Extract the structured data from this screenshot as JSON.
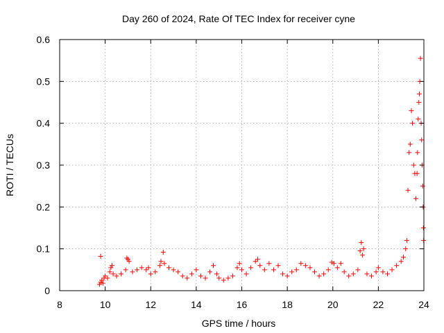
{
  "chart_data": {
    "type": "scatter",
    "title": "Day 260 of 2024, Rate Of TEC Index for receiver cyne",
    "xlabel": "GPS time / hours",
    "ylabel": "ROTI / TECUs",
    "xlim": [
      8,
      24
    ],
    "ylim": [
      0,
      0.6
    ],
    "xticks": [
      8,
      10,
      12,
      14,
      16,
      18,
      20,
      22,
      24
    ],
    "yticks": [
      0,
      0.1,
      0.2,
      0.3,
      0.4,
      0.5,
      0.6
    ],
    "xtick_labels": [
      "8",
      "10",
      "12",
      "14",
      "16",
      "18",
      "20",
      "22",
      "24"
    ],
    "ytick_labels": [
      "0",
      "0.1",
      "0.2",
      "0.3",
      "0.4",
      "0.5",
      "0.6"
    ],
    "grid": true,
    "legend": "none",
    "marker": "plus",
    "color": "#ff0000",
    "series": [
      {
        "points": [
          [
            9.8,
            0.082
          ],
          [
            9.75,
            0.015
          ],
          [
            9.8,
            0.02
          ],
          [
            9.85,
            0.025
          ],
          [
            9.9,
            0.018
          ],
          [
            9.95,
            0.03
          ],
          [
            10.0,
            0.035
          ],
          [
            10.1,
            0.03
          ],
          [
            10.2,
            0.045
          ],
          [
            10.25,
            0.055
          ],
          [
            10.3,
            0.06
          ],
          [
            10.35,
            0.04
          ],
          [
            10.5,
            0.035
          ],
          [
            10.7,
            0.04
          ],
          [
            10.9,
            0.05
          ],
          [
            10.95,
            0.078
          ],
          [
            11.0,
            0.075
          ],
          [
            11.05,
            0.07
          ],
          [
            11.2,
            0.045
          ],
          [
            11.4,
            0.05
          ],
          [
            11.6,
            0.055
          ],
          [
            11.8,
            0.05
          ],
          [
            11.9,
            0.055
          ],
          [
            12.0,
            0.04
          ],
          [
            12.2,
            0.045
          ],
          [
            12.4,
            0.06
          ],
          [
            12.45,
            0.07
          ],
          [
            12.55,
            0.092
          ],
          [
            12.6,
            0.065
          ],
          [
            12.8,
            0.055
          ],
          [
            13.0,
            0.05
          ],
          [
            13.2,
            0.045
          ],
          [
            13.4,
            0.035
          ],
          [
            13.6,
            0.03
          ],
          [
            13.8,
            0.04
          ],
          [
            14.0,
            0.05
          ],
          [
            14.2,
            0.035
          ],
          [
            14.4,
            0.03
          ],
          [
            14.6,
            0.045
          ],
          [
            14.75,
            0.06
          ],
          [
            14.9,
            0.04
          ],
          [
            15.0,
            0.03
          ],
          [
            15.2,
            0.025
          ],
          [
            15.4,
            0.03
          ],
          [
            15.6,
            0.035
          ],
          [
            15.8,
            0.055
          ],
          [
            15.9,
            0.065
          ],
          [
            16.0,
            0.05
          ],
          [
            16.2,
            0.04
          ],
          [
            16.4,
            0.055
          ],
          [
            16.6,
            0.07
          ],
          [
            16.7,
            0.075
          ],
          [
            16.8,
            0.06
          ],
          [
            17.0,
            0.05
          ],
          [
            17.2,
            0.065
          ],
          [
            17.4,
            0.05
          ],
          [
            17.6,
            0.06
          ],
          [
            17.8,
            0.04
          ],
          [
            18.0,
            0.035
          ],
          [
            18.2,
            0.045
          ],
          [
            18.4,
            0.05
          ],
          [
            18.6,
            0.065
          ],
          [
            18.8,
            0.06
          ],
          [
            19.0,
            0.055
          ],
          [
            19.2,
            0.045
          ],
          [
            19.4,
            0.035
          ],
          [
            19.6,
            0.04
          ],
          [
            19.8,
            0.05
          ],
          [
            19.95,
            0.068
          ],
          [
            20.05,
            0.065
          ],
          [
            20.2,
            0.055
          ],
          [
            20.35,
            0.065
          ],
          [
            20.5,
            0.045
          ],
          [
            20.7,
            0.035
          ],
          [
            20.9,
            0.04
          ],
          [
            21.1,
            0.05
          ],
          [
            21.2,
            0.095
          ],
          [
            21.25,
            0.115
          ],
          [
            21.3,
            0.085
          ],
          [
            21.35,
            0.1
          ],
          [
            21.5,
            0.04
          ],
          [
            21.7,
            0.035
          ],
          [
            21.9,
            0.045
          ],
          [
            22.0,
            0.055
          ],
          [
            22.2,
            0.045
          ],
          [
            22.4,
            0.04
          ],
          [
            22.6,
            0.05
          ],
          [
            22.8,
            0.06
          ],
          [
            23.0,
            0.07
          ],
          [
            23.1,
            0.08
          ],
          [
            23.2,
            0.1
          ],
          [
            23.25,
            0.12
          ],
          [
            23.3,
            0.24
          ],
          [
            23.35,
            0.33
          ],
          [
            23.4,
            0.35
          ],
          [
            23.45,
            0.43
          ],
          [
            23.5,
            0.4
          ],
          [
            23.55,
            0.3
          ],
          [
            23.6,
            0.28
          ],
          [
            23.65,
            0.22
          ],
          [
            23.7,
            0.28
          ],
          [
            23.72,
            0.33
          ],
          [
            23.75,
            0.41
          ],
          [
            23.78,
            0.45
          ],
          [
            23.8,
            0.47
          ],
          [
            23.82,
            0.5
          ],
          [
            23.85,
            0.555
          ],
          [
            23.88,
            0.4
          ],
          [
            23.9,
            0.36
          ],
          [
            23.92,
            0.3
          ],
          [
            23.95,
            0.25
          ],
          [
            23.97,
            0.2
          ],
          [
            23.98,
            0.15
          ],
          [
            23.99,
            0.12
          ]
        ]
      }
    ]
  }
}
